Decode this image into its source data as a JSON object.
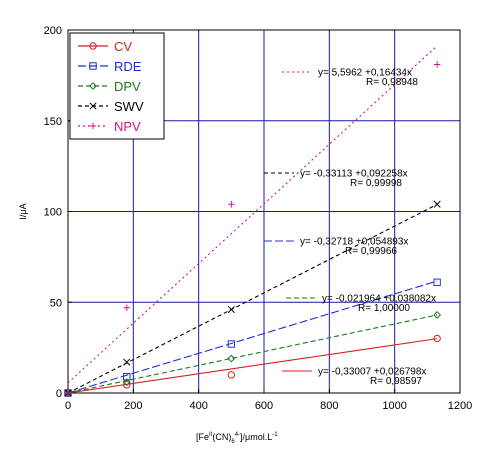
{
  "chart_data": {
    "type": "scatter",
    "xlabel": "[Fe",
    "xlabel_sup1": "II",
    "xlabel_mid": "(CN)",
    "xlabel_sub": "6",
    "xlabel_sup2": "4-",
    "xlabel_tail": "]/μmol.L",
    "xlabel_sup3": "-1",
    "ylabel": "I/μA",
    "xlim": [
      0,
      1200
    ],
    "ylim": [
      0,
      200
    ],
    "xticks": [
      0,
      200,
      400,
      600,
      800,
      1000,
      1200
    ],
    "yticks": [
      0,
      50,
      100,
      150,
      200
    ],
    "xtick_labels": [
      "0",
      "200",
      "400",
      "600",
      "800",
      "1000",
      "1200"
    ],
    "ytick_labels": [
      "0",
      "50",
      "100",
      "150",
      "200"
    ],
    "grid": true,
    "grid_color": "#1a1aa6",
    "legend_position": "top-left",
    "series": [
      {
        "name": "CV",
        "color": "#d42020",
        "marker": "circle",
        "dash": "solid",
        "x": [
          0,
          180,
          500,
          1130
        ],
        "y": [
          0,
          4.5,
          10,
          30
        ],
        "fit_intercept": -0.33007,
        "fit_slope": 0.026798,
        "equation": "y= -0,33007 +0,026798x",
        "r_label": "R= 0,98597"
      },
      {
        "name": "RDE",
        "color": "#1f2fd6",
        "marker": "square",
        "dash": "8,3",
        "x": [
          0,
          180,
          500,
          1130
        ],
        "y": [
          0,
          9,
          27,
          61
        ],
        "fit_intercept": -0.32718,
        "fit_slope": 0.054893,
        "equation": "y= -0,32718 +0,054893x",
        "r_label": "R= 0,99966"
      },
      {
        "name": "DPV",
        "color": "#1a7a1a",
        "marker": "diamond",
        "dash": "5,3",
        "x": [
          0,
          180,
          500,
          1130
        ],
        "y": [
          0,
          6,
          19,
          43
        ],
        "fit_intercept": -0.021964,
        "fit_slope": 0.038082,
        "equation": "y= -0,021964 +0,038082x",
        "r_label": "R= 1,00000"
      },
      {
        "name": "SWV",
        "color": "#000000",
        "marker": "x",
        "dash": "4,3",
        "x": [
          0,
          180,
          500,
          1130
        ],
        "y": [
          0,
          17,
          46,
          104
        ],
        "fit_intercept": -0.33113,
        "fit_slope": 0.092258,
        "equation": "y= -0,33113 +0,092258x",
        "r_label": "R= 0,99998"
      },
      {
        "name": "NPV",
        "color": "#d4148a",
        "marker": "plus",
        "dash": "2,3",
        "x": [
          0,
          180,
          500,
          1130
        ],
        "y": [
          0,
          47,
          104,
          181
        ],
        "fit_intercept": 5.5962,
        "fit_slope": 0.16434,
        "equation": "y= 5,5962 +0,16434x",
        "r_label": "R= 0,98948"
      }
    ]
  }
}
